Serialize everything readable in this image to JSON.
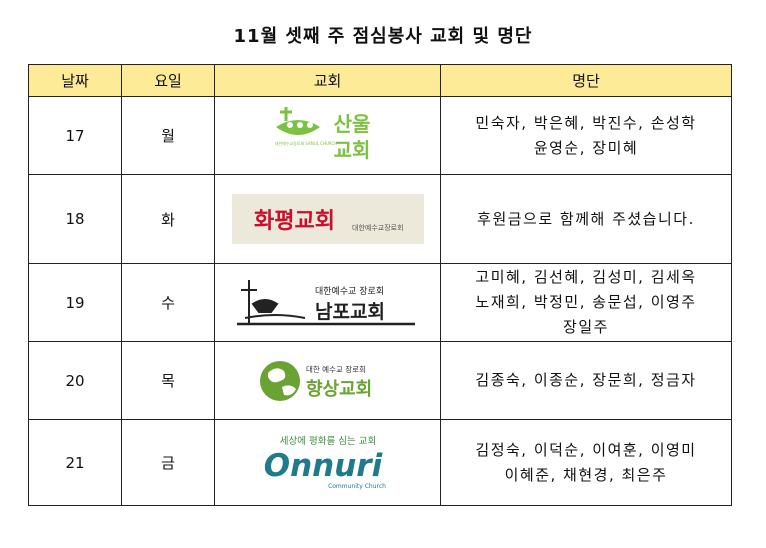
{
  "title": "11월 셋째 주 점심봉사 교회 및 명단",
  "headers": {
    "date": "날짜",
    "day": "요일",
    "church": "교회",
    "names": "명단"
  },
  "rows": [
    {
      "date": "17",
      "day": "월",
      "logo": {
        "name": "sanol-church-logo",
        "text_line1": "산울",
        "text_line2": "교회",
        "subtext": "대한예수교장로회 SANUL CHURCH",
        "color": "#7cc242"
      },
      "names_line1": "민숙자, 박은혜, 박진수, 손성학",
      "names_line2": "윤영순, 장미혜"
    },
    {
      "date": "18",
      "day": "화",
      "logo": {
        "name": "hwapyeong-church-logo",
        "text": "화평교회",
        "subtext": "대한예수교장로회",
        "color": "#c8102e",
        "bg": "#ece8da"
      },
      "names_line1": "후원금으로 함께해 주셨습니다."
    },
    {
      "date": "19",
      "day": "수",
      "logo": {
        "name": "nampo-church-logo",
        "text": "남포교회",
        "subtext": "대한예수교 장로회",
        "color": "#222222"
      },
      "names_line1": "고미혜, 김선혜, 김성미, 김세옥",
      "names_line2": "노재희, 박정민, 송문섭, 이영주",
      "names_line3": "장일주"
    },
    {
      "date": "20",
      "day": "목",
      "logo": {
        "name": "hyangsang-church-logo",
        "text": "향상교회",
        "subtext": "대한 예수교 장로회",
        "color": "#6aa333"
      },
      "names_line1": "김종숙, 이종순, 장문희, 정금자"
    },
    {
      "date": "21",
      "day": "금",
      "logo": {
        "name": "onnuri-church-logo",
        "tagline": "세상에 평화를 심는 교회",
        "text": "Onnuri",
        "subtext": "Community Church",
        "color": "#1f7a8c",
        "tagline_color": "#3e8e3e"
      },
      "names_line1": "김정숙, 이덕순, 이여훈, 이영미",
      "names_line2": "이혜준, 채현경, 최은주"
    }
  ]
}
